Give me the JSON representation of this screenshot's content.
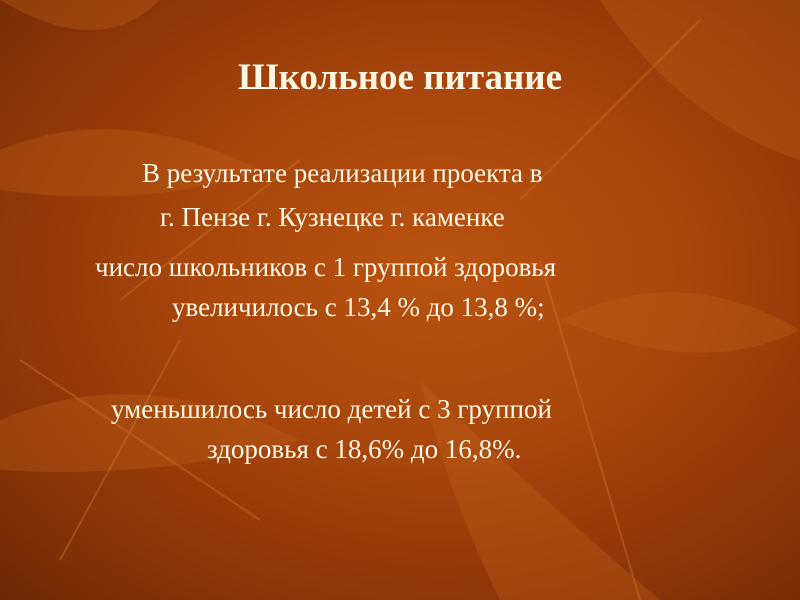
{
  "slide": {
    "title": "Школьное питание",
    "lines": [
      "В результате реализации проекта в",
      "г. Пензе  г. Кузнецке г. каменке",
      "число школьников с 1 группой здоровья",
      "увеличилось с 13,4 % до 13,8 %;",
      "уменьшилось число детей с 3 группой",
      "здоровья с 18,6% до 16,8%."
    ]
  },
  "colors": {
    "text": "#fff6e4",
    "background": "#a8460c"
  }
}
